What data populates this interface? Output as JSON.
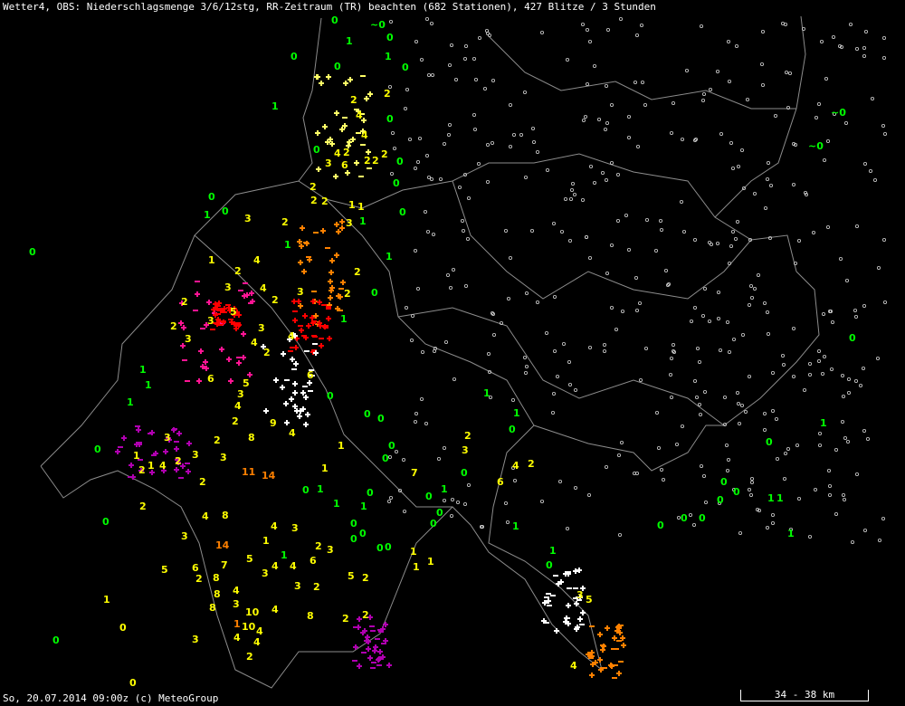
{
  "header": {
    "title": "Wetter4, OBS: Niederschlagsmenge 3/6/12stg, RR-Zeitraum (TR) beachten (682 Stationen), 427 Blitze / 3 Stunden"
  },
  "footer": {
    "timestamp": "So, 20.07.2014 09:00z (c) MeteoGroup",
    "scale_label": "34 - 38 km"
  },
  "colors": {
    "background": "#000000",
    "border": "#8c8c8c",
    "value_green": "#00ff00",
    "value_yellow": "#ffff00",
    "value_orange": "#ff8000",
    "lightning": [
      "#ffffff",
      "#ffff66",
      "#ff8000",
      "#ff0000",
      "#ff1493",
      "#b000b0"
    ]
  },
  "stations": [
    {
      "v": "0"
    },
    {
      "v": "~0"
    },
    {
      "v": "1"
    },
    {
      "v": "0"
    },
    {
      "v": "0"
    },
    {
      "v": "0"
    },
    {
      "v": "1"
    },
    {
      "v": "0"
    },
    {
      "v": "1"
    },
    {
      "v": "0"
    },
    {
      "v": "~0"
    },
    {
      "v": "~0"
    },
    {
      "v": "0"
    },
    {
      "v": "0"
    },
    {
      "v": "0"
    },
    {
      "v": "0"
    },
    {
      "v": "0"
    },
    {
      "v": "1"
    },
    {
      "v": "0"
    },
    {
      "v": "0"
    },
    {
      "v": "1"
    },
    {
      "v": "1"
    },
    {
      "v": "1"
    },
    {
      "v": "0"
    },
    {
      "v": "1"
    },
    {
      "v": "0"
    },
    {
      "v": "0"
    },
    {
      "v": "1"
    },
    {
      "v": "1"
    },
    {
      "v": "0"
    },
    {
      "v": "1"
    },
    {
      "v": "1"
    },
    {
      "v": "1"
    },
    {
      "v": "0"
    },
    {
      "v": "0"
    },
    {
      "v": "0"
    },
    {
      "v": "0"
    },
    {
      "v": "0"
    },
    {
      "v": "1"
    },
    {
      "v": "0"
    },
    {
      "v": "0"
    },
    {
      "v": "1"
    },
    {
      "v": "0"
    },
    {
      "v": "0"
    },
    {
      "v": "1"
    },
    {
      "v": "0"
    },
    {
      "v": "1"
    },
    {
      "v": "1"
    },
    {
      "v": "0"
    },
    {
      "v": "0"
    },
    {
      "v": "0"
    },
    {
      "v": "0"
    },
    {
      "v": "1"
    },
    {
      "v": "1"
    },
    {
      "v": "0"
    },
    {
      "v": "0"
    },
    {
      "v": "0"
    },
    {
      "v": "0"
    },
    {
      "v": "1"
    },
    {
      "v": "0"
    },
    {
      "v": "0"
    },
    {
      "v": "1"
    },
    {
      "v": "0"
    },
    {
      "v": "1"
    },
    {
      "v": "0"
    },
    {
      "v": "0"
    },
    {
      "v": "0"
    },
    {
      "v": "1"
    },
    {
      "v": "0"
    },
    {
      "v": "0"
    },
    {
      "v": "2"
    },
    {
      "v": "4"
    },
    {
      "v": "4"
    },
    {
      "v": "2"
    },
    {
      "v": "2"
    },
    {
      "v": "4"
    },
    {
      "v": "6"
    },
    {
      "v": "3"
    },
    {
      "v": "2"
    },
    {
      "v": "2"
    },
    {
      "v": "2"
    },
    {
      "v": "2"
    },
    {
      "v": "3"
    },
    {
      "v": "2"
    },
    {
      "v": "3"
    },
    {
      "v": "1"
    },
    {
      "v": "4"
    },
    {
      "v": "2"
    },
    {
      "v": "1"
    },
    {
      "v": "1"
    },
    {
      "v": "3"
    },
    {
      "v": "2"
    },
    {
      "v": "4"
    },
    {
      "v": "2"
    },
    {
      "v": "3"
    },
    {
      "v": "2"
    },
    {
      "v": "2"
    },
    {
      "v": "5"
    },
    {
      "v": "3"
    },
    {
      "v": "2"
    },
    {
      "v": "3"
    },
    {
      "v": "3"
    },
    {
      "v": "4"
    },
    {
      "v": "2"
    },
    {
      "v": "4"
    },
    {
      "v": "1"
    },
    {
      "v": "1"
    },
    {
      "v": "1"
    },
    {
      "v": "1"
    },
    {
      "v": "2"
    },
    {
      "v": "6"
    },
    {
      "v": "5"
    },
    {
      "v": "3"
    },
    {
      "v": "4"
    },
    {
      "v": "9"
    },
    {
      "v": "4"
    },
    {
      "v": "2"
    },
    {
      "v": "6"
    },
    {
      "v": "8"
    },
    {
      "v": "3"
    },
    {
      "v": "2"
    },
    {
      "v": "1"
    },
    {
      "v": "1"
    },
    {
      "v": "3"
    },
    {
      "v": "1"
    },
    {
      "v": "4"
    },
    {
      "v": "2"
    },
    {
      "v": "2"
    },
    {
      "v": "2"
    },
    {
      "v": "1"
    },
    {
      "v": "3"
    },
    {
      "v": "7"
    },
    {
      "v": "6"
    },
    {
      "v": "4"
    },
    {
      "v": "2"
    },
    {
      "v": "3"
    },
    {
      "v": "2"
    },
    {
      "v": "8"
    },
    {
      "v": "3"
    },
    {
      "v": "4"
    },
    {
      "v": "2"
    },
    {
      "v": "5"
    },
    {
      "v": "6"
    },
    {
      "v": "7"
    },
    {
      "v": "8"
    },
    {
      "v": "2"
    },
    {
      "v": "4"
    },
    {
      "v": "3"
    },
    {
      "v": "2"
    },
    {
      "v": "3"
    },
    {
      "v": "5"
    },
    {
      "v": "3"
    },
    {
      "v": "4"
    },
    {
      "v": "6"
    },
    {
      "v": "4"
    },
    {
      "v": "8"
    },
    {
      "v": "4"
    },
    {
      "v": "3"
    },
    {
      "v": "2"
    },
    {
      "v": "5"
    },
    {
      "v": "2"
    },
    {
      "v": "8"
    },
    {
      "v": "3"
    },
    {
      "v": "10"
    },
    {
      "v": "4"
    },
    {
      "v": "8"
    },
    {
      "v": "2"
    },
    {
      "v": "2"
    },
    {
      "v": "1"
    },
    {
      "v": "0"
    },
    {
      "v": "3"
    },
    {
      "v": "4"
    },
    {
      "v": "4"
    },
    {
      "v": "1"
    },
    {
      "v": "2"
    },
    {
      "v": "3"
    },
    {
      "v": "5"
    },
    {
      "v": "0"
    },
    {
      "v": "14"
    },
    {
      "v": "11"
    },
    {
      "v": "14"
    },
    {
      "v": "10"
    },
    {
      "v": "2"
    },
    {
      "v": "4"
    },
    {
      "v": "4"
    }
  ]
}
